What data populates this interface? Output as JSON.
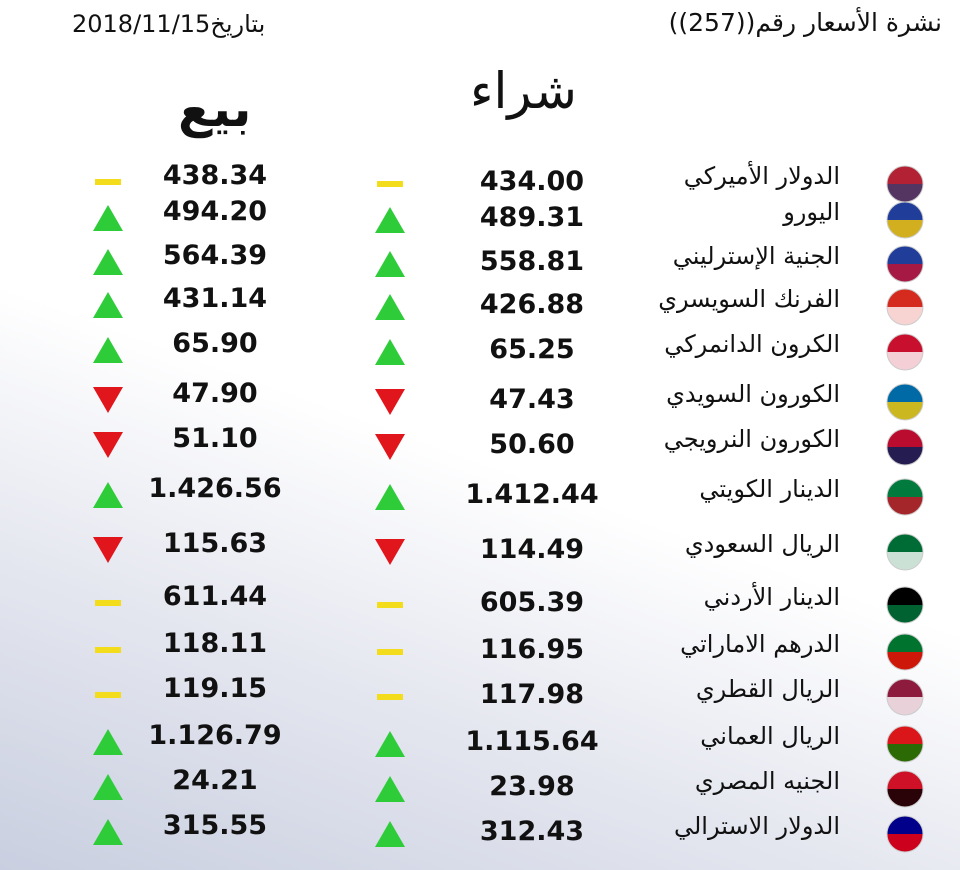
{
  "header": {
    "title": "نشرة الأسعار رقم((257))",
    "date": "بتاريخ2018/11/15"
  },
  "table": {
    "columns": [
      "شراء",
      "بيع"
    ],
    "rows": [
      {
        "currency": "الدولار الأميركي",
        "buy": "434.00",
        "sell": "438.34",
        "buy_trend": "flat",
        "sell_trend": "flat"
      },
      {
        "currency": "اليورو",
        "buy": "489.31",
        "sell": "494.20",
        "buy_trend": "up",
        "sell_trend": "up"
      },
      {
        "currency": "الجنية الإسترليني",
        "buy": "558.81",
        "sell": "564.39",
        "buy_trend": "up",
        "sell_trend": "up"
      },
      {
        "currency": "الفرنك السويسري",
        "buy": "426.88",
        "sell": "431.14",
        "buy_trend": "up",
        "sell_trend": "up"
      },
      {
        "currency": "الكرون الدانمركي",
        "buy": "65.25",
        "sell": "65.90",
        "buy_trend": "up",
        "sell_trend": "up"
      },
      {
        "currency": "الكورون السويدي",
        "buy": "47.43",
        "sell": "47.90",
        "buy_trend": "down",
        "sell_trend": "down"
      },
      {
        "currency": "الكورون النرويجي",
        "buy": "50.60",
        "sell": "51.10",
        "buy_trend": "down",
        "sell_trend": "down"
      },
      {
        "currency": "الدينار الكويتي",
        "buy": "1.412.44",
        "sell": "1.426.56",
        "buy_trend": "up",
        "sell_trend": "up"
      },
      {
        "currency": "الريال السعودي",
        "buy": "114.49",
        "sell": "115.63",
        "buy_trend": "down",
        "sell_trend": "down"
      },
      {
        "currency": "الدينار الأردني",
        "buy": "605.39",
        "sell": "611.44",
        "buy_trend": "flat",
        "sell_trend": "flat"
      },
      {
        "currency": "الدرهم الاماراتي",
        "buy": "116.95",
        "sell": "118.11",
        "buy_trend": "flat",
        "sell_trend": "flat"
      },
      {
        "currency": "الريال القطري",
        "buy": "117.98",
        "sell": "119.15",
        "buy_trend": "flat",
        "sell_trend": "flat"
      },
      {
        "currency": "الريال العماني",
        "buy": "1.115.64",
        "sell": "1.126.79",
        "buy_trend": "up",
        "sell_trend": "up"
      },
      {
        "currency": "الجنيه المصري",
        "buy": "23.98",
        "sell": "24.21",
        "buy_trend": "up",
        "sell_trend": "up"
      },
      {
        "currency": "الدولار الاسترالي",
        "buy": "312.43",
        "sell": "315.55",
        "buy_trend": "up",
        "sell_trend": "up"
      }
    ]
  }
}
